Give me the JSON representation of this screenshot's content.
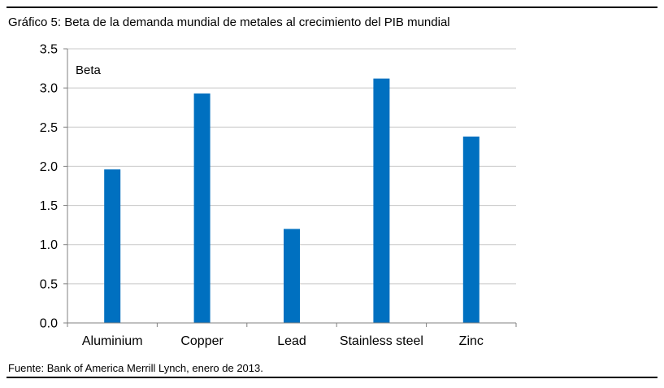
{
  "title": "Gráfico 5: Beta de la demanda mundial de metales al crecimiento del PIB mundial",
  "source": "Fuente: Bank of America Merrill Lynch, enero de 2013.",
  "chart_data": {
    "type": "bar",
    "ylabel": "Beta",
    "categories": [
      "Aluminium",
      "Copper",
      "Lead",
      "Stainless steel",
      "Zinc"
    ],
    "values": [
      1.96,
      2.93,
      1.2,
      3.12,
      2.38
    ],
    "ylim": [
      0,
      3.5
    ],
    "yticks": [
      "0.0",
      "0.5",
      "1.0",
      "1.5",
      "2.0",
      "2.5",
      "3.0",
      "3.5"
    ],
    "grid": true,
    "legend": "none",
    "bar_color": "#0070C0",
    "grid_color": "#C8C8C8",
    "axis_color": "#808080"
  }
}
